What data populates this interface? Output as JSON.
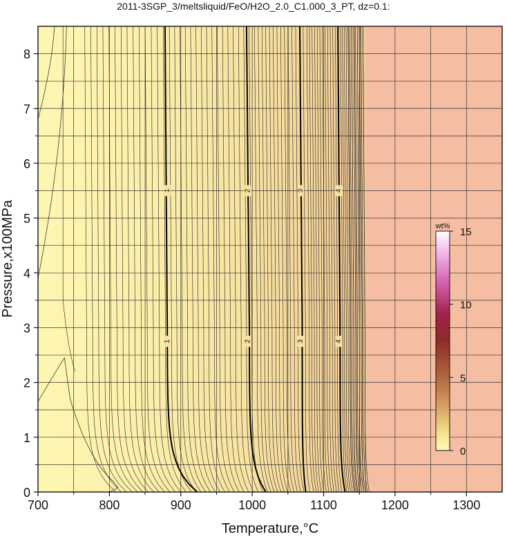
{
  "chart_data": {
    "type": "contour",
    "title": "2011-3SGP_3/meltsliquid/FeO/H2O_2.0_C1.000_3_PT, dz=0.1:",
    "xlabel": "Temperature,°C",
    "ylabel": "Pressure,x100MPa",
    "xlim": [
      700,
      1350
    ],
    "ylim": [
      0,
      8.5
    ],
    "x_ticks": [
      700,
      800,
      900,
      1000,
      1100,
      1200,
      1300
    ],
    "y_ticks": [
      0,
      1,
      2,
      3,
      4,
      5,
      6,
      7,
      8
    ],
    "grid": true,
    "contour_interval": 0.1,
    "labeled_contours": [
      {
        "value": 1,
        "label": "1",
        "temperature_high_p": 881,
        "temperature_low_p": 923,
        "label_pressures": [
          5.5,
          2.75
        ]
      },
      {
        "value": 2,
        "label": "2",
        "temperature_high_p": 996,
        "temperature_low_p": 1019,
        "label_pressures": [
          5.5,
          2.75
        ]
      },
      {
        "value": 3,
        "label": "3",
        "temperature_high_p": 1070,
        "temperature_low_p": 1075,
        "label_pressures": [
          5.5,
          2.75
        ]
      },
      {
        "value": 4,
        "label": "4",
        "temperature_high_p": 1123,
        "temperature_low_p": 1130,
        "label_pressures": [
          5.5,
          2.75
        ]
      }
    ],
    "liquid_field_limit_temperature": 1160,
    "colorbar": {
      "unit": "wt%",
      "min": 0,
      "max": 15,
      "ticks": [
        "0",
        "5",
        "10",
        "15"
      ]
    },
    "colors": {
      "low": "#fdf3a8",
      "mid": "#f1cf96",
      "high": "#f5bba0",
      "contour": "#111111"
    }
  }
}
